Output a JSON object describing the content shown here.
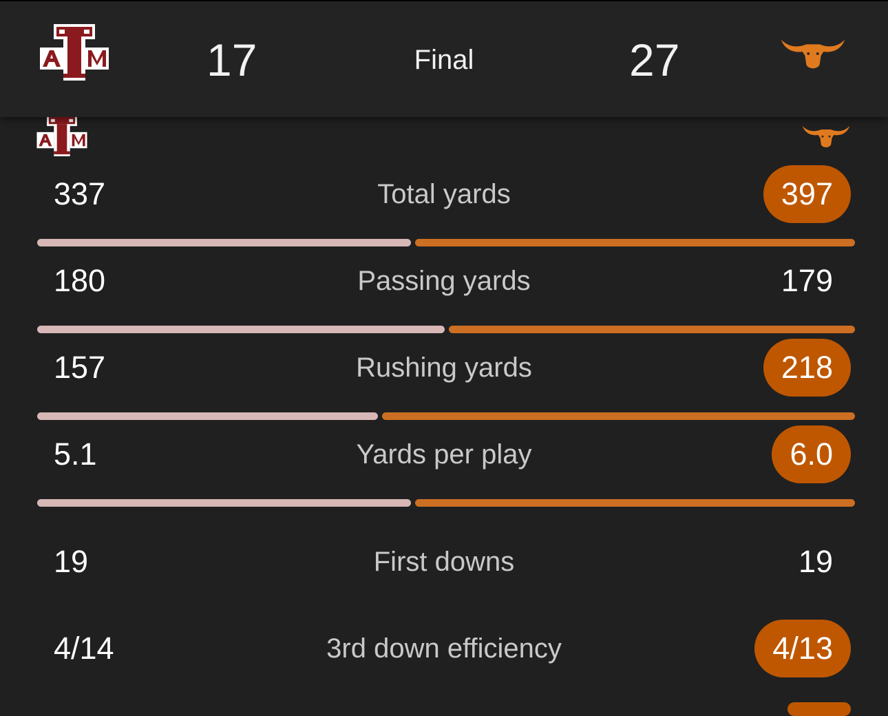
{
  "header": {
    "away_score": "17",
    "status": "Final",
    "home_score": "27",
    "away_logo": "texas-am-atm-logo",
    "home_logo": "texas-longhorn-logo"
  },
  "colors": {
    "away_bar": "#d7b8b7",
    "home_bar": "#cc6f22",
    "highlight_pill": "#bf5700",
    "away_maroon": "#8b1a1f",
    "home_orange": "#e07a1f"
  },
  "stats": [
    {
      "label": "Total yards",
      "away": "337",
      "home": "397",
      "home_highlight": true,
      "away_share": 0.459
    },
    {
      "label": "Passing yards",
      "away": "180",
      "home": "179",
      "home_highlight": false,
      "away_share": 0.501
    },
    {
      "label": "Rushing yards",
      "away": "157",
      "home": "218",
      "home_highlight": true,
      "away_share": 0.419
    },
    {
      "label": "Yards per play",
      "away": "5.1",
      "home": "6.0",
      "home_highlight": true,
      "away_share": 0.459
    },
    {
      "label": "First downs",
      "away": "19",
      "home": "19",
      "home_highlight": false
    },
    {
      "label": "3rd down efficiency",
      "away": "4/14",
      "home": "4/13",
      "home_highlight": true
    }
  ]
}
